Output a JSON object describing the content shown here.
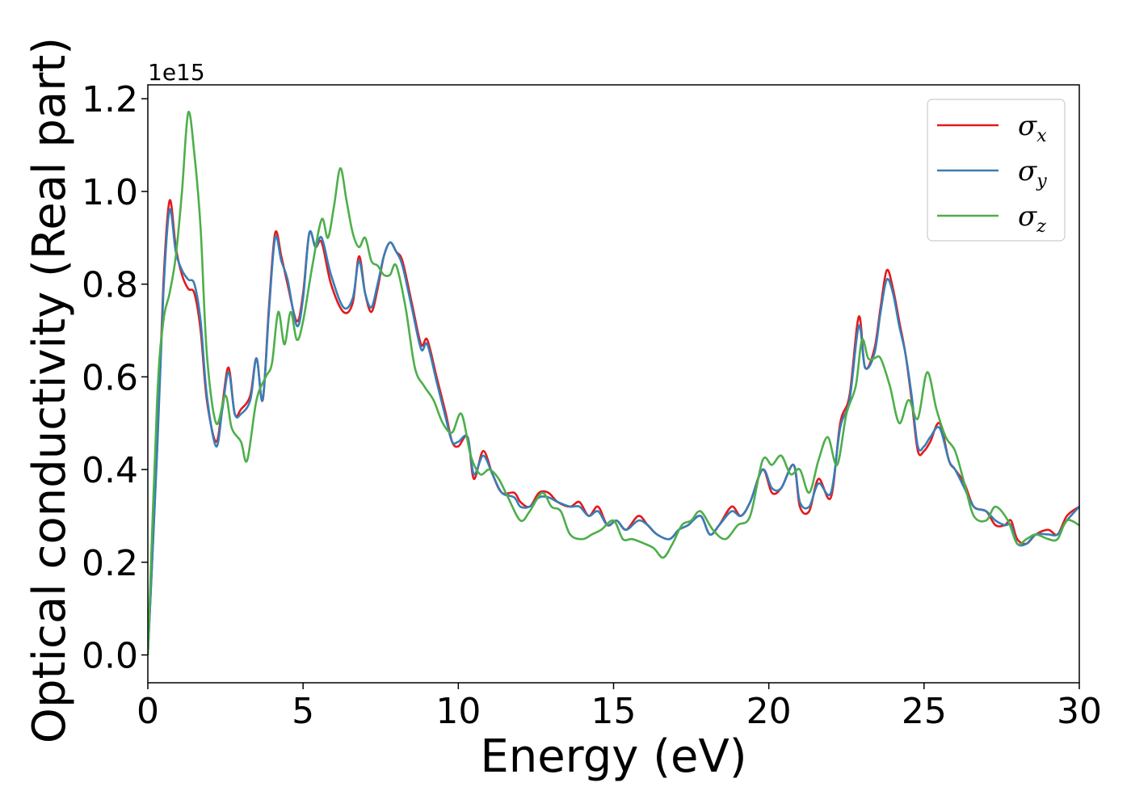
{
  "chart_data": {
    "type": "line",
    "xlabel": "Energy (eV)",
    "ylabel": "Optical conductivity (Real part)",
    "y_offset_label": "1e15",
    "xlim": [
      0,
      30
    ],
    "ylim": [
      -0.06,
      1.23
    ],
    "xticks": [
      0,
      5,
      10,
      15,
      20,
      25,
      30
    ],
    "xtick_labels": [
      "0",
      "5",
      "10",
      "15",
      "20",
      "25",
      "30"
    ],
    "yticks": [
      0.0,
      0.2,
      0.4,
      0.6,
      0.8,
      1.0,
      1.2
    ],
    "ytick_labels": [
      "0.0",
      "0.2",
      "0.4",
      "0.6",
      "0.8",
      "1.0",
      "1.2"
    ],
    "grid": false,
    "legend_position": "top-right",
    "series": [
      {
        "name": "σx",
        "symbol": "σ",
        "subscript": "x",
        "color": "#e41a1c",
        "x": [
          0,
          0.3,
          0.5,
          0.7,
          0.9,
          1.1,
          1.3,
          1.5,
          1.7,
          1.9,
          2.2,
          2.4,
          2.6,
          2.8,
          3.0,
          3.3,
          3.5,
          3.7,
          3.9,
          4.1,
          4.3,
          4.5,
          4.8,
          5.0,
          5.2,
          5.4,
          5.6,
          5.9,
          6.3,
          6.6,
          6.8,
          7.0,
          7.2,
          7.4,
          7.6,
          7.8,
          8.0,
          8.2,
          8.5,
          8.8,
          9.0,
          9.3,
          9.6,
          9.8,
          10.0,
          10.3,
          10.5,
          10.8,
          11.1,
          11.4,
          11.8,
          12.0,
          12.3,
          12.6,
          12.9,
          13.2,
          13.6,
          13.9,
          14.2,
          14.5,
          14.8,
          15.1,
          15.4,
          15.8,
          16.1,
          16.4,
          16.8,
          17.1,
          17.4,
          17.8,
          18.1,
          18.4,
          18.8,
          19.1,
          19.4,
          19.8,
          20.1,
          20.4,
          20.8,
          21.0,
          21.3,
          21.6,
          22.0,
          22.3,
          22.6,
          22.9,
          23.1,
          23.4,
          23.6,
          23.8,
          24.0,
          24.2,
          24.4,
          24.6,
          24.8,
          25.0,
          25.2,
          25.5,
          25.8,
          26.0,
          26.3,
          26.6,
          27.0,
          27.3,
          27.6,
          27.8,
          28.0,
          28.3,
          28.6,
          29.0,
          29.3,
          29.6,
          30.0
        ],
        "y": [
          0.0,
          0.45,
          0.8,
          0.98,
          0.88,
          0.82,
          0.79,
          0.78,
          0.7,
          0.55,
          0.46,
          0.54,
          0.62,
          0.52,
          0.53,
          0.56,
          0.64,
          0.55,
          0.75,
          0.91,
          0.86,
          0.8,
          0.72,
          0.78,
          0.91,
          0.88,
          0.89,
          0.8,
          0.74,
          0.76,
          0.86,
          0.78,
          0.74,
          0.79,
          0.86,
          0.89,
          0.87,
          0.85,
          0.76,
          0.67,
          0.68,
          0.6,
          0.52,
          0.46,
          0.45,
          0.47,
          0.38,
          0.44,
          0.39,
          0.35,
          0.35,
          0.33,
          0.32,
          0.35,
          0.35,
          0.33,
          0.32,
          0.33,
          0.3,
          0.32,
          0.28,
          0.29,
          0.27,
          0.3,
          0.28,
          0.26,
          0.25,
          0.27,
          0.28,
          0.3,
          0.26,
          0.28,
          0.32,
          0.3,
          0.33,
          0.4,
          0.35,
          0.36,
          0.41,
          0.32,
          0.31,
          0.38,
          0.34,
          0.5,
          0.56,
          0.73,
          0.62,
          0.66,
          0.75,
          0.83,
          0.79,
          0.72,
          0.65,
          0.55,
          0.44,
          0.44,
          0.46,
          0.5,
          0.42,
          0.4,
          0.37,
          0.32,
          0.31,
          0.28,
          0.28,
          0.29,
          0.25,
          0.24,
          0.26,
          0.27,
          0.26,
          0.3,
          0.32
        ]
      },
      {
        "name": "σy",
        "symbol": "σ",
        "subscript": "y",
        "color": "#377eb8",
        "x": [
          0,
          0.3,
          0.5,
          0.7,
          0.9,
          1.1,
          1.3,
          1.5,
          1.7,
          1.9,
          2.2,
          2.4,
          2.6,
          2.8,
          3.0,
          3.3,
          3.5,
          3.7,
          3.9,
          4.1,
          4.3,
          4.5,
          4.8,
          5.0,
          5.2,
          5.4,
          5.6,
          5.9,
          6.3,
          6.6,
          6.8,
          7.0,
          7.2,
          7.4,
          7.6,
          7.8,
          8.0,
          8.2,
          8.5,
          8.8,
          9.0,
          9.3,
          9.6,
          9.8,
          10.0,
          10.3,
          10.5,
          10.8,
          11.1,
          11.4,
          11.8,
          12.0,
          12.3,
          12.6,
          12.9,
          13.2,
          13.6,
          13.9,
          14.2,
          14.5,
          14.8,
          15.1,
          15.4,
          15.8,
          16.1,
          16.4,
          16.8,
          17.1,
          17.4,
          17.8,
          18.1,
          18.4,
          18.8,
          19.1,
          19.4,
          19.8,
          20.1,
          20.4,
          20.8,
          21.0,
          21.3,
          21.6,
          22.0,
          22.3,
          22.6,
          22.9,
          23.1,
          23.4,
          23.6,
          23.8,
          24.0,
          24.2,
          24.4,
          24.6,
          24.8,
          25.0,
          25.2,
          25.5,
          25.8,
          26.0,
          26.3,
          26.6,
          27.0,
          27.3,
          27.6,
          27.8,
          28.0,
          28.3,
          28.6,
          29.0,
          29.3,
          29.6,
          30.0
        ],
        "y": [
          0.0,
          0.44,
          0.78,
          0.96,
          0.87,
          0.83,
          0.81,
          0.8,
          0.72,
          0.56,
          0.45,
          0.53,
          0.61,
          0.52,
          0.52,
          0.55,
          0.64,
          0.55,
          0.74,
          0.9,
          0.85,
          0.81,
          0.71,
          0.77,
          0.91,
          0.88,
          0.9,
          0.82,
          0.75,
          0.77,
          0.85,
          0.78,
          0.75,
          0.8,
          0.86,
          0.89,
          0.87,
          0.84,
          0.75,
          0.66,
          0.67,
          0.59,
          0.51,
          0.46,
          0.46,
          0.47,
          0.39,
          0.43,
          0.39,
          0.35,
          0.34,
          0.32,
          0.32,
          0.34,
          0.34,
          0.33,
          0.32,
          0.32,
          0.3,
          0.31,
          0.28,
          0.29,
          0.27,
          0.29,
          0.28,
          0.26,
          0.25,
          0.27,
          0.28,
          0.3,
          0.26,
          0.28,
          0.31,
          0.3,
          0.33,
          0.4,
          0.36,
          0.36,
          0.41,
          0.33,
          0.32,
          0.37,
          0.35,
          0.49,
          0.55,
          0.71,
          0.62,
          0.65,
          0.74,
          0.81,
          0.78,
          0.71,
          0.65,
          0.56,
          0.45,
          0.45,
          0.47,
          0.49,
          0.42,
          0.4,
          0.36,
          0.32,
          0.31,
          0.29,
          0.28,
          0.28,
          0.24,
          0.24,
          0.26,
          0.26,
          0.26,
          0.29,
          0.32
        ]
      },
      {
        "name": "σz",
        "symbol": "σ",
        "subscript": "z",
        "color": "#4daf4a",
        "x": [
          0,
          0.3,
          0.5,
          0.7,
          0.9,
          1.1,
          1.3,
          1.5,
          1.7,
          1.9,
          2.2,
          2.5,
          2.7,
          3.0,
          3.2,
          3.5,
          3.8,
          4.0,
          4.2,
          4.4,
          4.6,
          4.8,
          5.0,
          5.3,
          5.6,
          5.8,
          6.0,
          6.2,
          6.4,
          6.6,
          6.8,
          7.0,
          7.2,
          7.4,
          7.6,
          7.8,
          8.0,
          8.3,
          8.6,
          8.9,
          9.2,
          9.5,
          9.8,
          10.1,
          10.4,
          10.7,
          11.0,
          11.3,
          11.6,
          12.0,
          12.3,
          12.7,
          13.0,
          13.3,
          13.6,
          14.0,
          14.3,
          14.6,
          15.0,
          15.3,
          15.6,
          16.0,
          16.3,
          16.6,
          16.9,
          17.2,
          17.5,
          17.8,
          18.2,
          18.6,
          19.0,
          19.4,
          19.8,
          20.1,
          20.4,
          20.7,
          21.0,
          21.3,
          21.6,
          21.9,
          22.2,
          22.5,
          22.8,
          23.0,
          23.2,
          23.4,
          23.6,
          23.9,
          24.2,
          24.5,
          24.8,
          25.1,
          25.4,
          25.7,
          26.0,
          26.3,
          26.6,
          27.0,
          27.3,
          27.7,
          28.0,
          28.3,
          28.6,
          29.0,
          29.3,
          29.6,
          30.0
        ],
        "y": [
          0.0,
          0.55,
          0.72,
          0.78,
          0.86,
          1.0,
          1.17,
          1.08,
          0.92,
          0.65,
          0.5,
          0.56,
          0.49,
          0.46,
          0.42,
          0.55,
          0.6,
          0.63,
          0.74,
          0.67,
          0.74,
          0.68,
          0.72,
          0.84,
          0.94,
          0.9,
          0.97,
          1.05,
          0.98,
          0.91,
          0.88,
          0.9,
          0.85,
          0.84,
          0.82,
          0.82,
          0.84,
          0.75,
          0.62,
          0.58,
          0.55,
          0.5,
          0.48,
          0.52,
          0.43,
          0.39,
          0.4,
          0.38,
          0.34,
          0.29,
          0.31,
          0.35,
          0.32,
          0.31,
          0.26,
          0.25,
          0.26,
          0.27,
          0.29,
          0.25,
          0.25,
          0.24,
          0.23,
          0.21,
          0.24,
          0.28,
          0.29,
          0.31,
          0.27,
          0.25,
          0.28,
          0.3,
          0.42,
          0.41,
          0.43,
          0.39,
          0.4,
          0.35,
          0.42,
          0.47,
          0.41,
          0.52,
          0.58,
          0.68,
          0.64,
          0.64,
          0.64,
          0.58,
          0.5,
          0.55,
          0.51,
          0.61,
          0.53,
          0.47,
          0.44,
          0.37,
          0.3,
          0.29,
          0.32,
          0.29,
          0.24,
          0.25,
          0.26,
          0.25,
          0.25,
          0.29,
          0.28
        ]
      }
    ]
  }
}
